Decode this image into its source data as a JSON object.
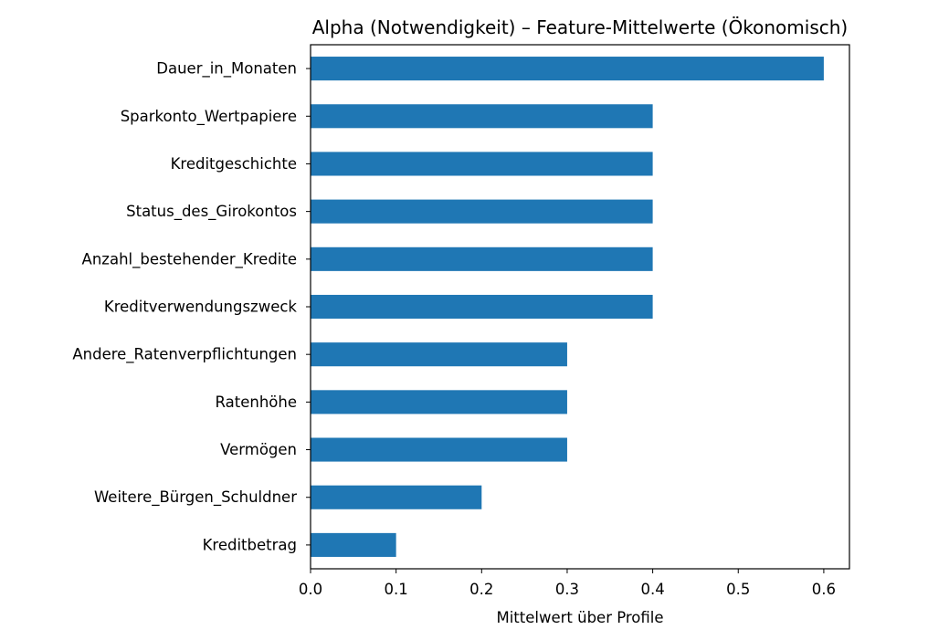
{
  "chart_data": {
    "type": "bar",
    "orientation": "horizontal",
    "title": "Alpha (Notwendigkeit) – Feature-Mittelwerte (Ökonomisch)",
    "xlabel": "Mittelwert über Profile",
    "ylabel": "",
    "xlim": [
      0.0,
      0.63
    ],
    "xticks": [
      0.0,
      0.1,
      0.2,
      0.3,
      0.4,
      0.5,
      0.6
    ],
    "xtick_labels": [
      "0.0",
      "0.1",
      "0.2",
      "0.3",
      "0.4",
      "0.5",
      "0.6"
    ],
    "categories": [
      "Dauer_in_Monaten",
      "Sparkonto_Wertpapiere",
      "Kreditgeschichte",
      "Status_des_Girokontos",
      "Anzahl_bestehender_Kredite",
      "Kreditverwendungszweck",
      "Andere_Ratenverpflichtungen",
      "Ratenhöhe",
      "Vermögen",
      "Weitere_Bürgen_Schuldner",
      "Kreditbetrag"
    ],
    "values": [
      0.6,
      0.4,
      0.4,
      0.4,
      0.4,
      0.4,
      0.3,
      0.3,
      0.3,
      0.2,
      0.1
    ],
    "bar_color": "#1f77b4",
    "grid": false,
    "legend": false
  }
}
